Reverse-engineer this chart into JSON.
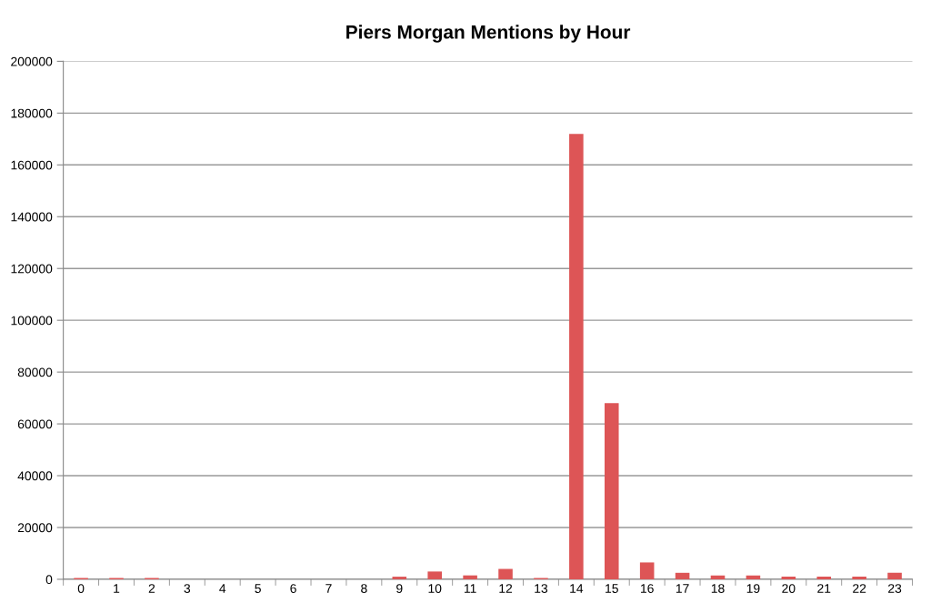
{
  "chart_data": {
    "type": "bar",
    "title": "Piers Morgan Mentions by Hour",
    "categories": [
      "0",
      "1",
      "2",
      "3",
      "4",
      "5",
      "6",
      "7",
      "8",
      "9",
      "10",
      "11",
      "12",
      "13",
      "14",
      "15",
      "16",
      "17",
      "18",
      "19",
      "20",
      "21",
      "22",
      "23"
    ],
    "values": [
      500,
      500,
      500,
      null,
      null,
      null,
      null,
      null,
      null,
      1000,
      3000,
      1500,
      4000,
      500,
      172000,
      68000,
      6500,
      2500,
      1500,
      1500,
      1000,
      1000,
      1000,
      2500
    ],
    "color": "#dd5556",
    "ylim": [
      0,
      200000
    ],
    "yticks": [
      0,
      20000,
      40000,
      60000,
      80000,
      100000,
      120000,
      140000,
      160000,
      180000,
      200000
    ],
    "grid": "y",
    "legend": false
  }
}
